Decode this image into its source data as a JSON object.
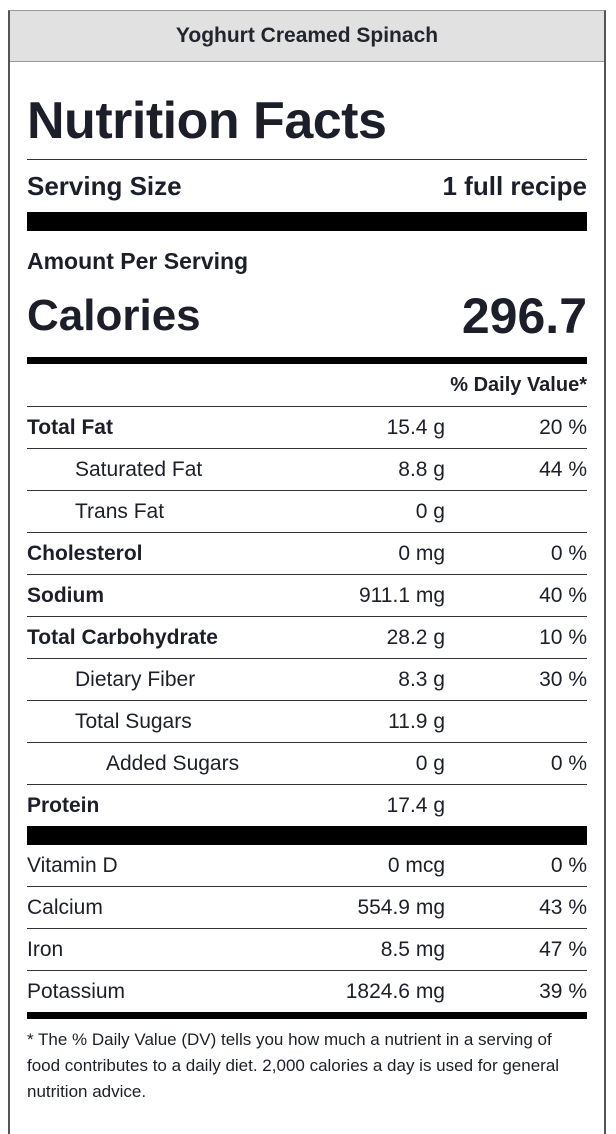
{
  "recipe_name": "Yoghurt Creamed Spinach",
  "panel_title": "Nutrition Facts",
  "serving": {
    "label": "Serving Size",
    "value": "1 full recipe"
  },
  "amount_per_serving": "Amount Per Serving",
  "calories": {
    "label": "Calories",
    "value": "296.7"
  },
  "daily_value_header": "% Daily Value*",
  "nutrients": [
    {
      "name": "Total Fat",
      "amount": "15.4 g",
      "dv": "20 %"
    },
    {
      "name": "Saturated Fat",
      "amount": "8.8 g",
      "dv": "44 %"
    },
    {
      "name": "Trans Fat",
      "amount": "0 g",
      "dv": ""
    },
    {
      "name": "Cholesterol",
      "amount": "0 mg",
      "dv": "0 %"
    },
    {
      "name": "Sodium",
      "amount": "911.1 mg",
      "dv": "40 %"
    },
    {
      "name": "Total Carbohydrate",
      "amount": "28.2 g",
      "dv": "10 %"
    },
    {
      "name": "Dietary Fiber",
      "amount": "8.3 g",
      "dv": "30 %"
    },
    {
      "name": "Total Sugars",
      "amount": "11.9 g",
      "dv": ""
    },
    {
      "name": "Added Sugars",
      "amount": "0 g",
      "dv": "0 %"
    },
    {
      "name": "Protein",
      "amount": "17.4 g",
      "dv": ""
    }
  ],
  "vitamins": [
    {
      "name": "Vitamin D",
      "amount": "0 mcg",
      "dv": "0 %"
    },
    {
      "name": "Calcium",
      "amount": "554.9 mg",
      "dv": "43 %"
    },
    {
      "name": "Iron",
      "amount": "8.5 mg",
      "dv": "47 %"
    },
    {
      "name": "Potassium",
      "amount": "1824.6 mg",
      "dv": "39 %"
    }
  ],
  "footnote": "* The % Daily Value (DV) tells you how much a nutrient in a serving of food contributes to a daily diet. 2,000 calories a day is used for general nutrition advice."
}
